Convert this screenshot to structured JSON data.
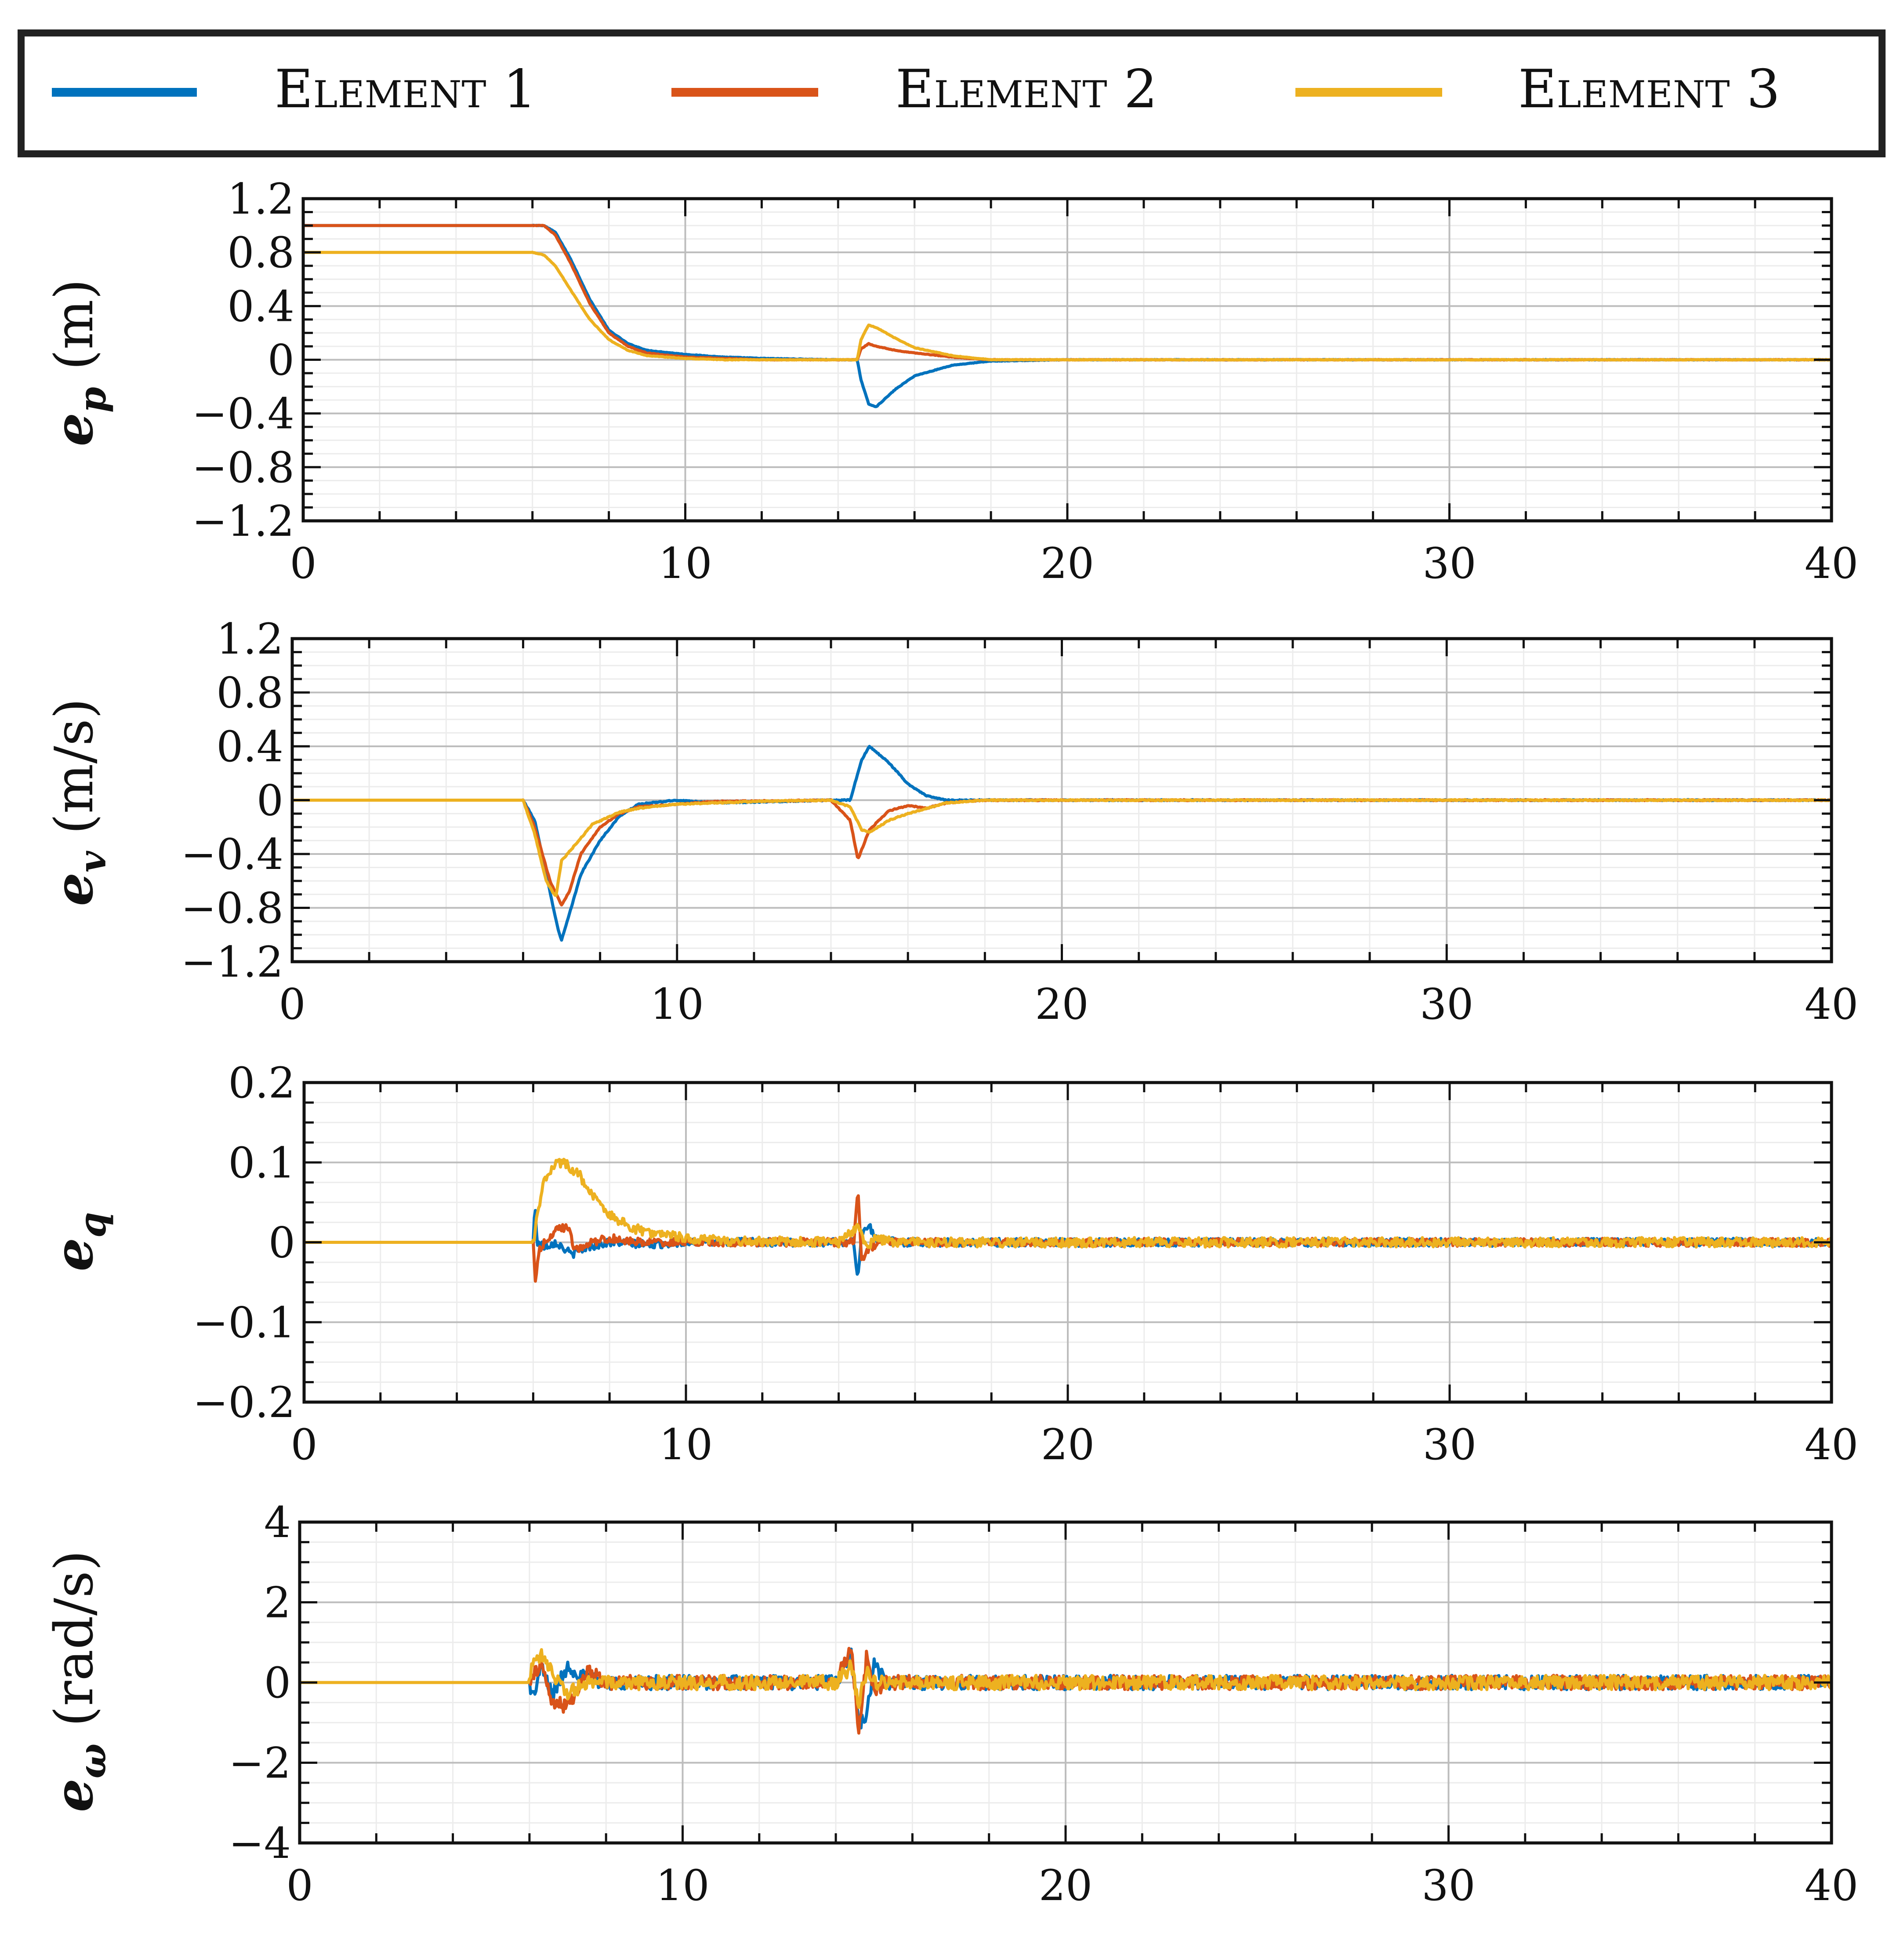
{
  "legend": {
    "entries": [
      {
        "label": "Element 1",
        "color": "#0072BD"
      },
      {
        "label": "Element 2",
        "color": "#D95319"
      },
      {
        "label": "Element 3",
        "color": "#EDB120"
      }
    ]
  },
  "chart_data": [
    {
      "type": "line",
      "title": "",
      "ylabel_symbol": "e",
      "ylabel_subscript": "p",
      "ylabel_unit": " (m)",
      "xlabel": "",
      "xlim": [
        0,
        40
      ],
      "ylim": [
        -1.2,
        1.2
      ],
      "xticks": [
        0,
        10,
        20,
        30,
        40
      ],
      "yticks": [
        -1.2,
        -0.8,
        -0.4,
        0,
        0.4,
        0.8,
        1.2
      ],
      "ytick_labels": [
        "−1.2",
        "−0.8",
        "−0.4",
        "0",
        "0.4",
        "0.8",
        "1.2"
      ],
      "grid": true,
      "noise": [
        0.002,
        0.002,
        0.002
      ],
      "series": [
        {
          "name": "Element 1",
          "x": [
            0,
            6,
            6.3,
            6.6,
            7,
            7.5,
            8,
            8.5,
            9,
            10,
            11,
            12,
            13,
            14,
            14.5,
            14.6,
            14.8,
            15,
            15.5,
            16,
            17,
            18,
            20,
            40
          ],
          "y": [
            1.0,
            1.0,
            1.0,
            0.95,
            0.75,
            0.45,
            0.22,
            0.12,
            0.07,
            0.04,
            0.02,
            0.01,
            0.005,
            0.0,
            0.0,
            -0.15,
            -0.33,
            -0.35,
            -0.22,
            -0.12,
            -0.04,
            -0.01,
            0.0,
            0.0
          ]
        },
        {
          "name": "Element 2",
          "x": [
            0,
            6,
            6.3,
            6.6,
            7,
            7.5,
            8,
            8.5,
            9,
            10,
            11,
            12,
            14,
            14.5,
            14.6,
            14.8,
            15,
            15.5,
            16,
            17,
            18,
            40
          ],
          "y": [
            1.0,
            1.0,
            1.0,
            0.93,
            0.72,
            0.42,
            0.2,
            0.1,
            0.05,
            0.02,
            0.01,
            0.0,
            0.0,
            0.0,
            0.08,
            0.12,
            0.1,
            0.07,
            0.05,
            0.02,
            0.0,
            0.0
          ]
        },
        {
          "name": "Element 3",
          "x": [
            0,
            6,
            6.3,
            6.6,
            7,
            7.5,
            8,
            8.5,
            9,
            10,
            11,
            14,
            14.5,
            14.6,
            14.8,
            15,
            15.5,
            16,
            17,
            18,
            40
          ],
          "y": [
            0.8,
            0.8,
            0.78,
            0.7,
            0.52,
            0.3,
            0.15,
            0.07,
            0.03,
            0.01,
            0.0,
            0.0,
            0.0,
            0.15,
            0.26,
            0.24,
            0.16,
            0.09,
            0.03,
            0.0,
            0.0
          ]
        }
      ]
    },
    {
      "type": "line",
      "title": "",
      "ylabel_symbol": "e",
      "ylabel_subscript": "v",
      "ylabel_unit": " (m/s)",
      "xlabel": "",
      "xlim": [
        0,
        40
      ],
      "ylim": [
        -1.2,
        1.2
      ],
      "xticks": [
        0,
        10,
        20,
        30,
        40
      ],
      "yticks": [
        -1.2,
        -0.8,
        -0.4,
        0,
        0.4,
        0.8,
        1.2
      ],
      "ytick_labels": [
        "−1.2",
        "−0.8",
        "−0.4",
        "0",
        "0.4",
        "0.8",
        "1.2"
      ],
      "grid": true,
      "noise": [
        0.004,
        0.004,
        0.004
      ],
      "series": [
        {
          "name": "Element 1",
          "x": [
            0,
            6,
            6.3,
            6.6,
            6.9,
            7.0,
            7.2,
            7.5,
            8,
            8.5,
            9,
            10,
            11,
            14,
            14.5,
            14.8,
            15,
            15.5,
            16,
            16.5,
            17,
            18,
            40
          ],
          "y": [
            0,
            0,
            -0.15,
            -0.55,
            -0.95,
            -1.04,
            -0.85,
            -0.55,
            -0.3,
            -0.12,
            -0.03,
            0.0,
            -0.02,
            0.0,
            0.0,
            0.3,
            0.4,
            0.28,
            0.12,
            0.03,
            0.0,
            0.0,
            0.0
          ]
        },
        {
          "name": "Element 2",
          "x": [
            0,
            6,
            6.3,
            6.7,
            7.0,
            7.2,
            7.5,
            8,
            8.5,
            9,
            10,
            11,
            14,
            14.5,
            14.7,
            15,
            15.5,
            16,
            16.5,
            17,
            18,
            40
          ],
          "y": [
            0,
            0,
            -0.2,
            -0.6,
            -0.78,
            -0.68,
            -0.4,
            -0.2,
            -0.1,
            -0.05,
            -0.03,
            -0.01,
            0.0,
            -0.15,
            -0.44,
            -0.22,
            -0.08,
            -0.04,
            -0.06,
            -0.02,
            0.0,
            0.0
          ]
        },
        {
          "name": "Element 3",
          "x": [
            0,
            6,
            6.3,
            6.6,
            6.85,
            7.0,
            7.3,
            7.8,
            8.5,
            9,
            10,
            12,
            14,
            14.5,
            14.8,
            15,
            15.5,
            16,
            16.5,
            17,
            18,
            40
          ],
          "y": [
            0,
            0,
            -0.25,
            -0.6,
            -0.72,
            -0.45,
            -0.35,
            -0.18,
            -0.09,
            -0.06,
            -0.03,
            -0.01,
            0.0,
            -0.05,
            -0.22,
            -0.24,
            -0.15,
            -0.1,
            -0.06,
            -0.02,
            0.0,
            0.0
          ]
        }
      ]
    },
    {
      "type": "line",
      "title": "",
      "ylabel_symbol": "e",
      "ylabel_subscript": "q",
      "ylabel_unit": "",
      "xlabel": "",
      "xlim": [
        0,
        40
      ],
      "ylim": [
        -0.2,
        0.2
      ],
      "xticks": [
        0,
        10,
        20,
        30,
        40
      ],
      "yticks": [
        -0.2,
        -0.1,
        0,
        0.1,
        0.2
      ],
      "ytick_labels": [
        "−0.2",
        "−0.1",
        "0",
        "0.1",
        "0.2"
      ],
      "grid": true,
      "noise": [
        0.005,
        0.005,
        0.006
      ],
      "series": [
        {
          "name": "Element 1",
          "x": [
            0,
            6,
            6.05,
            6.1,
            6.3,
            6.6,
            7,
            7.5,
            8,
            9,
            10,
            14,
            14.4,
            14.5,
            14.6,
            14.8,
            15,
            15.5,
            40
          ],
          "y": [
            0,
            0,
            0.05,
            0.0,
            -0.005,
            0.0,
            -0.015,
            -0.005,
            0.0,
            -0.003,
            0.0,
            0.0,
            0.0,
            -0.045,
            0.01,
            0.02,
            0.005,
            0.0,
            0.0
          ]
        },
        {
          "name": "Element 2",
          "x": [
            0,
            6,
            6.05,
            6.15,
            6.3,
            6.6,
            6.9,
            7.1,
            7.5,
            8,
            9,
            10,
            14,
            14.4,
            14.5,
            14.6,
            14.8,
            15,
            15.5,
            40
          ],
          "y": [
            0,
            0,
            -0.05,
            -0.01,
            0.0,
            0.015,
            0.02,
            -0.01,
            0.0,
            0.005,
            0.0,
            0.0,
            0.0,
            0.0,
            0.07,
            -0.02,
            -0.01,
            0.0,
            0.0,
            0.0
          ]
        },
        {
          "name": "Element 3",
          "x": [
            0,
            6,
            6.1,
            6.3,
            6.6,
            6.8,
            7.2,
            7.6,
            8,
            8.5,
            9,
            10,
            11,
            14,
            14.5,
            14.7,
            15,
            15.5,
            40
          ],
          "y": [
            0,
            0,
            0.03,
            0.08,
            0.1,
            0.1,
            0.085,
            0.055,
            0.035,
            0.02,
            0.012,
            0.005,
            0.002,
            0.0,
            0.02,
            -0.005,
            0.005,
            0.0,
            0.0
          ]
        }
      ]
    },
    {
      "type": "line",
      "title": "",
      "ylabel_symbol": "e",
      "ylabel_subscript": "ω",
      "ylabel_unit": " (rad/s)",
      "xlabel": "",
      "xlim": [
        0,
        40
      ],
      "ylim": [
        -4,
        4
      ],
      "xticks": [
        0,
        10,
        20,
        30,
        40
      ],
      "yticks": [
        -4,
        -2,
        0,
        2,
        4
      ],
      "ytick_labels": [
        "−4",
        "−2",
        "0",
        "2",
        "4"
      ],
      "grid": true,
      "noise": [
        0.18,
        0.18,
        0.18
      ],
      "series": [
        {
          "name": "Element 1",
          "x": [
            0,
            6,
            6.1,
            6.3,
            6.6,
            7,
            7.5,
            8,
            14,
            14.4,
            14.6,
            14.8,
            15.0,
            15.3,
            40
          ],
          "y": [
            0,
            0,
            -0.4,
            0.4,
            -0.3,
            0.4,
            0.1,
            0.0,
            0.0,
            0.7,
            -1.0,
            -0.9,
            0.5,
            0.0,
            0.0
          ]
        },
        {
          "name": "Element 2",
          "x": [
            0,
            6,
            6.1,
            6.3,
            6.6,
            7,
            7.5,
            8,
            14,
            14.4,
            14.6,
            14.8,
            15.0,
            15.3,
            40
          ],
          "y": [
            0,
            0,
            0.2,
            0.5,
            -0.5,
            -0.6,
            0.3,
            0.0,
            0.0,
            0.9,
            -1.3,
            0.6,
            -0.3,
            0.0,
            0.0
          ]
        },
        {
          "name": "Element 3",
          "x": [
            0,
            6,
            6.1,
            6.3,
            6.6,
            7,
            7.5,
            8,
            14,
            14.4,
            14.6,
            14.8,
            15.0,
            15.3,
            40
          ],
          "y": [
            0,
            0,
            0.6,
            0.7,
            0.2,
            -0.3,
            0.0,
            0.0,
            0.0,
            0.4,
            -0.5,
            0.3,
            0.0,
            0.0,
            0.0
          ]
        }
      ]
    }
  ]
}
